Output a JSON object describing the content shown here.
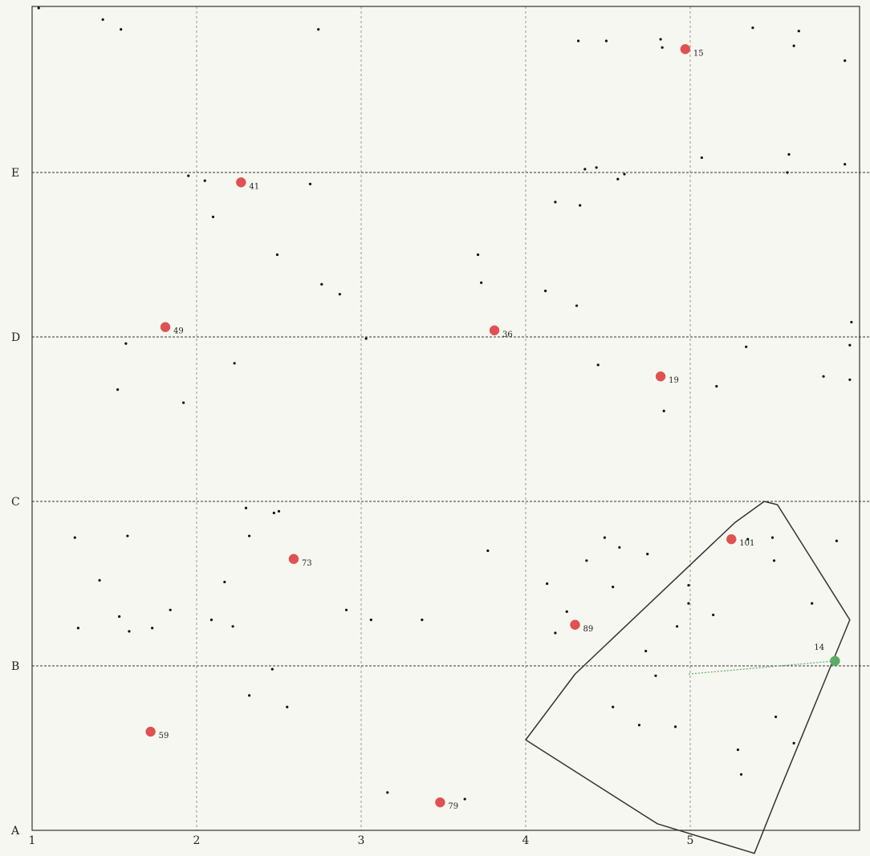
{
  "x_axis": {
    "labels": [
      "1",
      "2",
      "3",
      "4",
      "5"
    ]
  },
  "y_axis": {
    "labels": [
      "A",
      "B",
      "C",
      "D",
      "E"
    ]
  },
  "colors": {
    "background": "#f7f7f1",
    "grid": "#9a9a80",
    "row_line": "#333333",
    "frame": "#333333",
    "red_marker": "#e05252",
    "green_marker": "#5aab65",
    "dot": "#111111",
    "boundary": "#333333"
  },
  "grid_values": {
    "x": [
      1,
      2,
      3,
      4,
      5
    ],
    "y": [
      "A",
      "B",
      "C",
      "D",
      "E"
    ]
  },
  "labeled_points": [
    {
      "id": "15",
      "x": 4.97,
      "y": 5.75,
      "color": "red"
    },
    {
      "id": "41",
      "x": 2.27,
      "y": 4.94,
      "color": "red"
    },
    {
      "id": "49",
      "x": 1.81,
      "y": 4.06,
      "color": "red"
    },
    {
      "id": "36",
      "x": 3.81,
      "y": 4.04,
      "color": "red"
    },
    {
      "id": "19",
      "x": 4.82,
      "y": 3.76,
      "color": "red"
    },
    {
      "id": "101",
      "x": 5.25,
      "y": 2.77,
      "color": "red"
    },
    {
      "id": "73",
      "x": 2.59,
      "y": 2.65,
      "color": "red"
    },
    {
      "id": "89",
      "x": 4.3,
      "y": 2.25,
      "color": "red"
    },
    {
      "id": "14",
      "x": 5.88,
      "y": 2.03,
      "color": "green"
    },
    {
      "id": "59",
      "x": 1.72,
      "y": 1.6,
      "color": "red"
    },
    {
      "id": "79",
      "x": 3.48,
      "y": 1.17,
      "color": "red"
    }
  ],
  "small_points": [
    [
      1.04,
      6.0
    ],
    [
      1.43,
      5.93
    ],
    [
      1.54,
      5.87
    ],
    [
      2.74,
      5.87
    ],
    [
      4.32,
      5.8
    ],
    [
      4.49,
      5.8
    ],
    [
      4.82,
      5.81
    ],
    [
      4.83,
      5.76
    ],
    [
      5.38,
      5.88
    ],
    [
      5.63,
      5.77
    ],
    [
      5.66,
      5.86
    ],
    [
      5.94,
      5.68
    ],
    [
      5.07,
      5.09
    ],
    [
      5.6,
      5.11
    ],
    [
      5.59,
      5.0
    ],
    [
      5.94,
      5.05
    ],
    [
      4.36,
      5.02
    ],
    [
      4.43,
      5.03
    ],
    [
      4.6,
      4.99
    ],
    [
      4.56,
      4.96
    ],
    [
      1.95,
      4.98
    ],
    [
      2.05,
      4.95
    ],
    [
      2.69,
      4.93
    ],
    [
      2.1,
      4.73
    ],
    [
      4.18,
      4.82
    ],
    [
      4.33,
      4.8
    ],
    [
      2.49,
      4.5
    ],
    [
      3.71,
      4.5
    ],
    [
      3.73,
      4.33
    ],
    [
      2.76,
      4.32
    ],
    [
      2.87,
      4.26
    ],
    [
      4.12,
      4.28
    ],
    [
      4.31,
      4.19
    ],
    [
      3.03,
      3.99
    ],
    [
      1.57,
      3.96
    ],
    [
      2.23,
      3.84
    ],
    [
      4.44,
      3.83
    ],
    [
      5.34,
      3.94
    ],
    [
      5.98,
      4.09
    ],
    [
      5.97,
      3.95
    ],
    [
      5.81,
      3.76
    ],
    [
      5.97,
      3.74
    ],
    [
      5.16,
      3.7
    ],
    [
      4.84,
      3.55
    ],
    [
      1.52,
      3.68
    ],
    [
      1.92,
      3.6
    ],
    [
      1.26,
      2.78
    ],
    [
      1.58,
      2.79
    ],
    [
      2.3,
      2.96
    ],
    [
      2.47,
      2.93
    ],
    [
      2.5,
      2.94
    ],
    [
      2.32,
      2.79
    ],
    [
      4.48,
      2.78
    ],
    [
      4.57,
      2.72
    ],
    [
      4.74,
      2.68
    ],
    [
      5.35,
      2.77
    ],
    [
      5.5,
      2.78
    ],
    [
      5.89,
      2.76
    ],
    [
      3.77,
      2.7
    ],
    [
      4.37,
      2.64
    ],
    [
      5.51,
      2.64
    ],
    [
      1.41,
      2.52
    ],
    [
      2.17,
      2.51
    ],
    [
      4.13,
      2.5
    ],
    [
      4.53,
      2.48
    ],
    [
      4.99,
      2.49
    ],
    [
      4.99,
      2.38
    ],
    [
      1.28,
      2.23
    ],
    [
      1.53,
      2.3
    ],
    [
      1.59,
      2.21
    ],
    [
      1.73,
      2.23
    ],
    [
      1.84,
      2.34
    ],
    [
      2.09,
      2.28
    ],
    [
      2.22,
      2.24
    ],
    [
      2.91,
      2.34
    ],
    [
      3.06,
      2.28
    ],
    [
      3.37,
      2.28
    ],
    [
      4.25,
      2.33
    ],
    [
      4.18,
      2.2
    ],
    [
      4.92,
      2.24
    ],
    [
      5.14,
      2.31
    ],
    [
      5.74,
      2.38
    ],
    [
      4.73,
      2.09
    ],
    [
      4.79,
      1.94
    ],
    [
      2.46,
      1.98
    ],
    [
      2.32,
      1.82
    ],
    [
      2.55,
      1.75
    ],
    [
      4.53,
      1.75
    ],
    [
      4.69,
      1.64
    ],
    [
      4.91,
      1.63
    ],
    [
      5.52,
      1.69
    ],
    [
      5.63,
      1.53
    ],
    [
      5.29,
      1.49
    ],
    [
      5.31,
      1.34
    ],
    [
      3.16,
      1.23
    ],
    [
      3.63,
      1.19
    ]
  ],
  "boundary": {
    "points": [
      [
        5.45,
        3.0
      ],
      [
        5.53,
        2.98
      ],
      [
        5.97,
        2.28
      ],
      [
        5.53,
        1.21
      ],
      [
        5.39,
        0.86
      ],
      [
        4.8,
        1.04
      ],
      [
        4.0,
        1.55
      ],
      [
        4.3,
        1.95
      ],
      [
        5.27,
        2.87
      ]
    ],
    "inner_link": [
      [
        4.99,
        1.95
      ],
      [
        5.88,
        2.03
      ]
    ]
  }
}
